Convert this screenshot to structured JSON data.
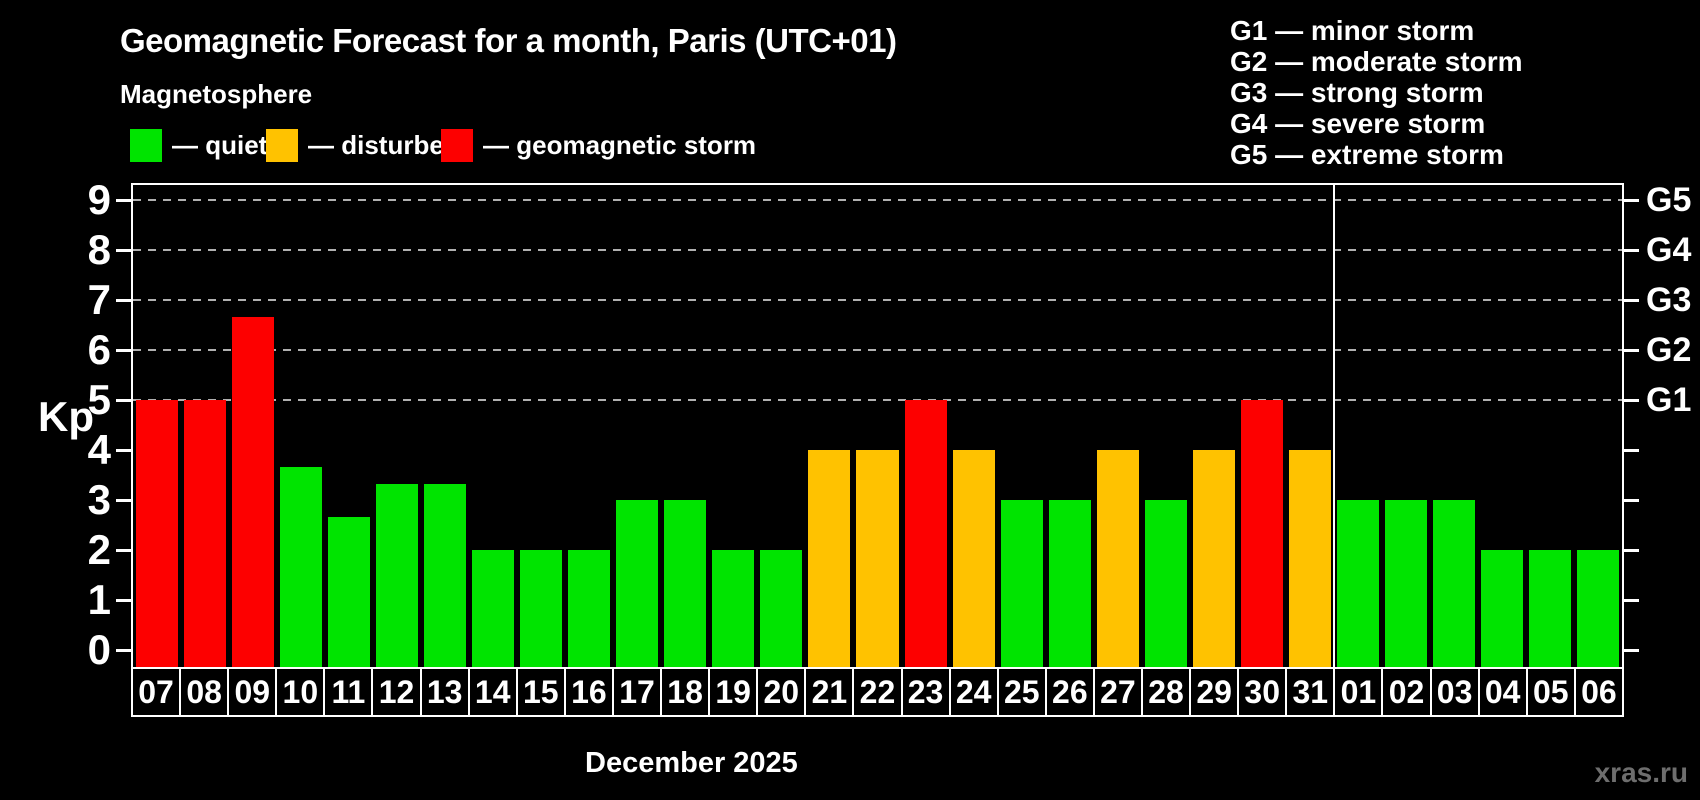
{
  "header": {
    "title": "Geomagnetic Forecast for a month, Paris (UTC+01)",
    "subtitle": "Magnetosphere"
  },
  "legend": {
    "items": [
      {
        "key": "quiet",
        "label": "— quiet"
      },
      {
        "key": "disturbed",
        "label": "— disturbed"
      },
      {
        "key": "storm",
        "label": "— geomagnetic storm"
      }
    ]
  },
  "g_legend": {
    "items": [
      "G1 — minor storm",
      "G2 — moderate storm",
      "G3 — strong storm",
      "G4 — severe storm",
      "G5 — extreme storm"
    ]
  },
  "colors": {
    "quiet": "#00e400",
    "disturbed": "#ffc200",
    "storm": "#fd0000",
    "axis": "#ffffff",
    "grid": "#b0b0b0",
    "background": "#000000",
    "watermark": "#6e6e6e"
  },
  "chart_data": {
    "type": "bar",
    "title": "Geomagnetic Forecast for a month, Paris (UTC+01)",
    "subtitle": "Magnetosphere",
    "ylabel": "Kp",
    "xlabel": "December 2025",
    "ylim": [
      0,
      9
    ],
    "yticks": [
      0,
      1,
      2,
      3,
      4,
      5,
      6,
      7,
      8,
      9
    ],
    "gridlines_at": [
      5,
      6,
      7,
      8,
      9
    ],
    "grid": "dashed",
    "legend_position": "top",
    "right_axis_labels": [
      {
        "value": 5,
        "label": "G1"
      },
      {
        "value": 6,
        "label": "G2"
      },
      {
        "value": 7,
        "label": "G3"
      },
      {
        "value": 8,
        "label": "G4"
      },
      {
        "value": 9,
        "label": "G5"
      }
    ],
    "month_separator_before_day": "01",
    "categories": [
      "07",
      "08",
      "09",
      "10",
      "11",
      "12",
      "13",
      "14",
      "15",
      "16",
      "17",
      "18",
      "19",
      "20",
      "21",
      "22",
      "23",
      "24",
      "25",
      "26",
      "27",
      "28",
      "29",
      "30",
      "31",
      "01",
      "02",
      "03",
      "04",
      "05",
      "06"
    ],
    "points": [
      {
        "day": "07",
        "kp": 5.0,
        "status": "storm"
      },
      {
        "day": "08",
        "kp": 5.0,
        "status": "storm"
      },
      {
        "day": "09",
        "kp": 6.67,
        "status": "storm"
      },
      {
        "day": "10",
        "kp": 3.67,
        "status": "quiet"
      },
      {
        "day": "11",
        "kp": 2.67,
        "status": "quiet"
      },
      {
        "day": "12",
        "kp": 3.33,
        "status": "quiet"
      },
      {
        "day": "13",
        "kp": 3.33,
        "status": "quiet"
      },
      {
        "day": "14",
        "kp": 2.0,
        "status": "quiet"
      },
      {
        "day": "15",
        "kp": 2.0,
        "status": "quiet"
      },
      {
        "day": "16",
        "kp": 2.0,
        "status": "quiet"
      },
      {
        "day": "17",
        "kp": 3.0,
        "status": "quiet"
      },
      {
        "day": "18",
        "kp": 3.0,
        "status": "quiet"
      },
      {
        "day": "19",
        "kp": 2.0,
        "status": "quiet"
      },
      {
        "day": "20",
        "kp": 2.0,
        "status": "quiet"
      },
      {
        "day": "21",
        "kp": 4.0,
        "status": "disturbed"
      },
      {
        "day": "22",
        "kp": 4.0,
        "status": "disturbed"
      },
      {
        "day": "23",
        "kp": 5.0,
        "status": "storm"
      },
      {
        "day": "24",
        "kp": 4.0,
        "status": "disturbed"
      },
      {
        "day": "25",
        "kp": 3.0,
        "status": "quiet"
      },
      {
        "day": "26",
        "kp": 3.0,
        "status": "quiet"
      },
      {
        "day": "27",
        "kp": 4.0,
        "status": "disturbed"
      },
      {
        "day": "28",
        "kp": 3.0,
        "status": "quiet"
      },
      {
        "day": "29",
        "kp": 4.0,
        "status": "disturbed"
      },
      {
        "day": "30",
        "kp": 5.0,
        "status": "storm"
      },
      {
        "day": "31",
        "kp": 4.0,
        "status": "disturbed"
      },
      {
        "day": "01",
        "kp": 3.0,
        "status": "quiet"
      },
      {
        "day": "02",
        "kp": 3.0,
        "status": "quiet"
      },
      {
        "day": "03",
        "kp": 3.0,
        "status": "quiet"
      },
      {
        "day": "04",
        "kp": 2.0,
        "status": "quiet"
      },
      {
        "day": "05",
        "kp": 2.0,
        "status": "quiet"
      },
      {
        "day": "06",
        "kp": 2.0,
        "status": "quiet"
      }
    ]
  },
  "watermark": "xras.ru"
}
